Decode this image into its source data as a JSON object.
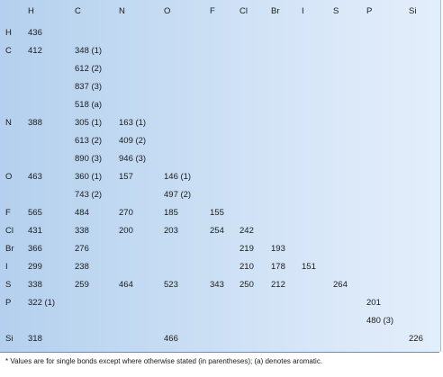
{
  "columns": [
    "",
    "H",
    "C",
    "N",
    "O",
    "F",
    "Cl",
    "Br",
    "I",
    "S",
    "P",
    "Si"
  ],
  "rows": [
    [
      "H",
      "436",
      "",
      "",
      "",
      "",
      "",
      "",
      "",
      "",
      "",
      ""
    ],
    [
      "C",
      "412",
      "348 (1)",
      "",
      "",
      "",
      "",
      "",
      "",
      "",
      "",
      ""
    ],
    [
      "",
      "",
      "612 (2)",
      "",
      "",
      "",
      "",
      "",
      "",
      "",
      "",
      ""
    ],
    [
      "",
      "",
      "837 (3)",
      "",
      "",
      "",
      "",
      "",
      "",
      "",
      "",
      ""
    ],
    [
      "",
      "",
      "518 (a)",
      "",
      "",
      "",
      "",
      "",
      "",
      "",
      "",
      ""
    ],
    [
      "N",
      "388",
      "305 (1)",
      "163 (1)",
      "",
      "",
      "",
      "",
      "",
      "",
      "",
      ""
    ],
    [
      "",
      "",
      "613 (2)",
      "409 (2)",
      "",
      "",
      "",
      "",
      "",
      "",
      "",
      ""
    ],
    [
      "",
      "",
      "890 (3)",
      "946 (3)",
      "",
      "",
      "",
      "",
      "",
      "",
      "",
      ""
    ],
    [
      "O",
      "463",
      "360 (1)",
      "157",
      "146 (1)",
      "",
      "",
      "",
      "",
      "",
      "",
      ""
    ],
    [
      "",
      "",
      "743 (2)",
      "",
      "497 (2)",
      "",
      "",
      "",
      "",
      "",
      "",
      ""
    ],
    [
      "F",
      "565",
      "484",
      "270",
      "185",
      "155",
      "",
      "",
      "",
      "",
      "",
      ""
    ],
    [
      "Cl",
      "431",
      "338",
      "200",
      "203",
      "254",
      "242",
      "",
      "",
      "",
      "",
      ""
    ],
    [
      "Br",
      "366",
      "276",
      "",
      "",
      "",
      "219",
      "193",
      "",
      "",
      "",
      ""
    ],
    [
      "I",
      "299",
      "238",
      "",
      "",
      "",
      "210",
      "178",
      "151",
      "",
      "",
      ""
    ],
    [
      "S",
      "338",
      "259",
      "464",
      "523",
      "343",
      "250",
      "212",
      "",
      "264",
      "",
      ""
    ],
    [
      "P",
      "322 (1)",
      "",
      "",
      "",
      "",
      "",
      "",
      "",
      "",
      "201",
      ""
    ],
    [
      "",
      "",
      "",
      "",
      "",
      "",
      "",
      "",
      "",
      "",
      "480 (3)",
      ""
    ],
    [
      "Si",
      "318",
      "",
      "",
      "466",
      "",
      "",
      "",
      "",
      "",
      "",
      "226"
    ]
  ],
  "footnote": "* Values are for single bonds except where otherwise stated (in parentheses); (a) denotes aromatic."
}
